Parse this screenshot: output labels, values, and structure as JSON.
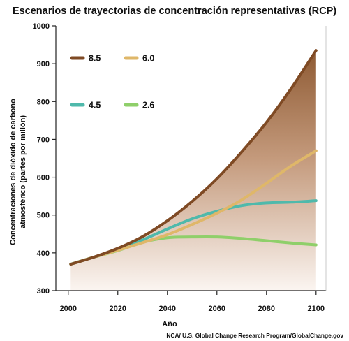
{
  "chart_data": {
    "type": "line",
    "title": "Escenarios de trayectorias de concentración representativas (RCP)",
    "xlabel": "Año",
    "ylabel_lines": [
      "Concentraciones de dióxido de carbono",
      "atmosférico (partes por millón)"
    ],
    "xlim": [
      1995,
      2104
    ],
    "ylim": [
      300,
      1000
    ],
    "x_ticks": [
      2000,
      2020,
      2040,
      2060,
      2080,
      2100
    ],
    "y_ticks": [
      300,
      400,
      500,
      600,
      700,
      800,
      900,
      1000
    ],
    "grid": false,
    "legend_position": "top-left",
    "shading": "area between RCP 8.5 and the x-axis filled with a brown gradient",
    "series": [
      {
        "name": "8.5",
        "color": "#7f4a24",
        "x": [
          2001,
          2010,
          2020,
          2030,
          2040,
          2050,
          2060,
          2070,
          2080,
          2090,
          2100
        ],
        "y": [
          370,
          388,
          412,
          443,
          485,
          536,
          596,
          667,
          745,
          835,
          935
        ]
      },
      {
        "name": "6.0",
        "color": "#dfb769",
        "x": [
          2001,
          2010,
          2020,
          2030,
          2040,
          2050,
          2060,
          2070,
          2080,
          2090,
          2100
        ],
        "y": [
          370,
          388,
          407,
          427,
          448,
          475,
          505,
          540,
          584,
          630,
          670
        ]
      },
      {
        "name": "4.5",
        "color": "#4fb9ab",
        "x": [
          2001,
          2010,
          2020,
          2030,
          2040,
          2050,
          2060,
          2070,
          2080,
          2090,
          2100
        ],
        "y": [
          370,
          388,
          408,
          434,
          463,
          490,
          510,
          525,
          532,
          534,
          538
        ]
      },
      {
        "name": "2.6",
        "color": "#8fcf6a",
        "x": [
          2001,
          2010,
          2020,
          2030,
          2040,
          2050,
          2060,
          2070,
          2080,
          2090,
          2100
        ],
        "y": [
          370,
          388,
          406,
          428,
          440,
          442,
          442,
          438,
          432,
          426,
          421
        ]
      }
    ]
  },
  "credit": "NCA/ U.S. Global Change Research Program/GlobalChange.gov"
}
